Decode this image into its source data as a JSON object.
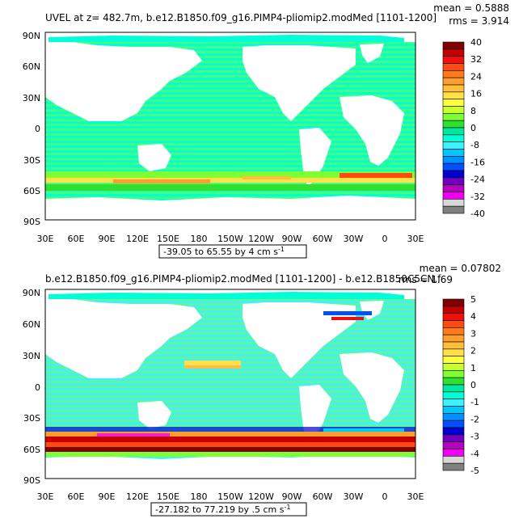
{
  "chart_data": [
    {
      "type": "heatmap",
      "title": "UVEL at z=  482.7m, b.e12.B1850.f09_g16.PIMP4-pliomip2.modMed  [1101-1200]",
      "stats": {
        "mean": "mean = 0.5888",
        "rms": "rms = 3.914"
      },
      "xticks": [
        "30E",
        "60E",
        "90E",
        "120E",
        "150E",
        "180",
        "150W",
        "120W",
        "90W",
        "60W",
        "30W",
        "0",
        "30E"
      ],
      "yticks": [
        "90N",
        "60N",
        "30N",
        "0",
        "30S",
        "60S",
        "90S"
      ],
      "xlim": [
        30,
        390
      ],
      "ylim": [
        -90,
        90
      ],
      "range_text": "-39.05 to 65.55 by 4 cm s",
      "range_sup": "-1",
      "legend_position": "right",
      "colorbar": {
        "labels": [
          "40",
          "32",
          "24",
          "16",
          "8",
          "0",
          "-8",
          "-16",
          "-24",
          "-32",
          "-40"
        ],
        "colors": [
          "#7f0000",
          "#c40000",
          "#ee1010",
          "#ff4a10",
          "#ff7a1a",
          "#ff9e2e",
          "#ffbf3a",
          "#ffe04a",
          "#ffff3a",
          "#c8ff30",
          "#7fff30",
          "#30e030",
          "#00e8a0",
          "#00ffd8",
          "#40f0ff",
          "#00c8ff",
          "#0090ff",
          "#0050ff",
          "#0000d0",
          "#7000c0",
          "#b800c0",
          "#f000f0",
          "#d8d8d8",
          "#808080"
        ]
      },
      "zonal_values": [
        {
          "lat": -50,
          "value": 12
        },
        {
          "lat": -55,
          "value": 24
        },
        {
          "lat": -60,
          "value": 8
        },
        {
          "lat": 0,
          "value": -4
        },
        {
          "lat": 30,
          "value": -2
        }
      ]
    },
    {
      "type": "heatmap",
      "title": "b.e12.B1850.f09_g16.PIMP4-pliomip2.modMed  [1101-1200] - b.e12.B1850C5CN.f",
      "stats": {
        "mean": "mean = 0.07802",
        "rms": "rms = 1.69"
      },
      "xticks": [
        "30E",
        "60E",
        "90E",
        "120E",
        "150E",
        "180",
        "150W",
        "120W",
        "90W",
        "60W",
        "30W",
        "0",
        "30E"
      ],
      "yticks": [
        "90N",
        "60N",
        "30N",
        "0",
        "30S",
        "60S",
        "90S"
      ],
      "xlim": [
        30,
        390
      ],
      "ylim": [
        -90,
        90
      ],
      "range_text": "-27.182 to 77.219 by .5 cm s",
      "range_sup": "-1",
      "legend_position": "right",
      "colorbar": {
        "labels": [
          "5",
          "4",
          "3",
          "2",
          "1",
          "0",
          "-1",
          "-2",
          "-3",
          "-4",
          "-5"
        ],
        "colors": [
          "#7f0000",
          "#c40000",
          "#ee1010",
          "#ff4a10",
          "#ff7a1a",
          "#ff9e2e",
          "#ffbf3a",
          "#ffe04a",
          "#ffff3a",
          "#c8ff30",
          "#7fff30",
          "#30e030",
          "#00e8a0",
          "#00ffd8",
          "#40f0ff",
          "#00c8ff",
          "#0090ff",
          "#0050ff",
          "#0000d0",
          "#7000c0",
          "#b800c0",
          "#f000f0",
          "#d8d8d8",
          "#808080"
        ]
      },
      "zonal_values": [
        {
          "lat": -55,
          "value": 4
        },
        {
          "lat": -60,
          "value": 3
        },
        {
          "lat": 20,
          "value": 2
        },
        {
          "lat": 0,
          "value": -0.5
        }
      ]
    }
  ]
}
